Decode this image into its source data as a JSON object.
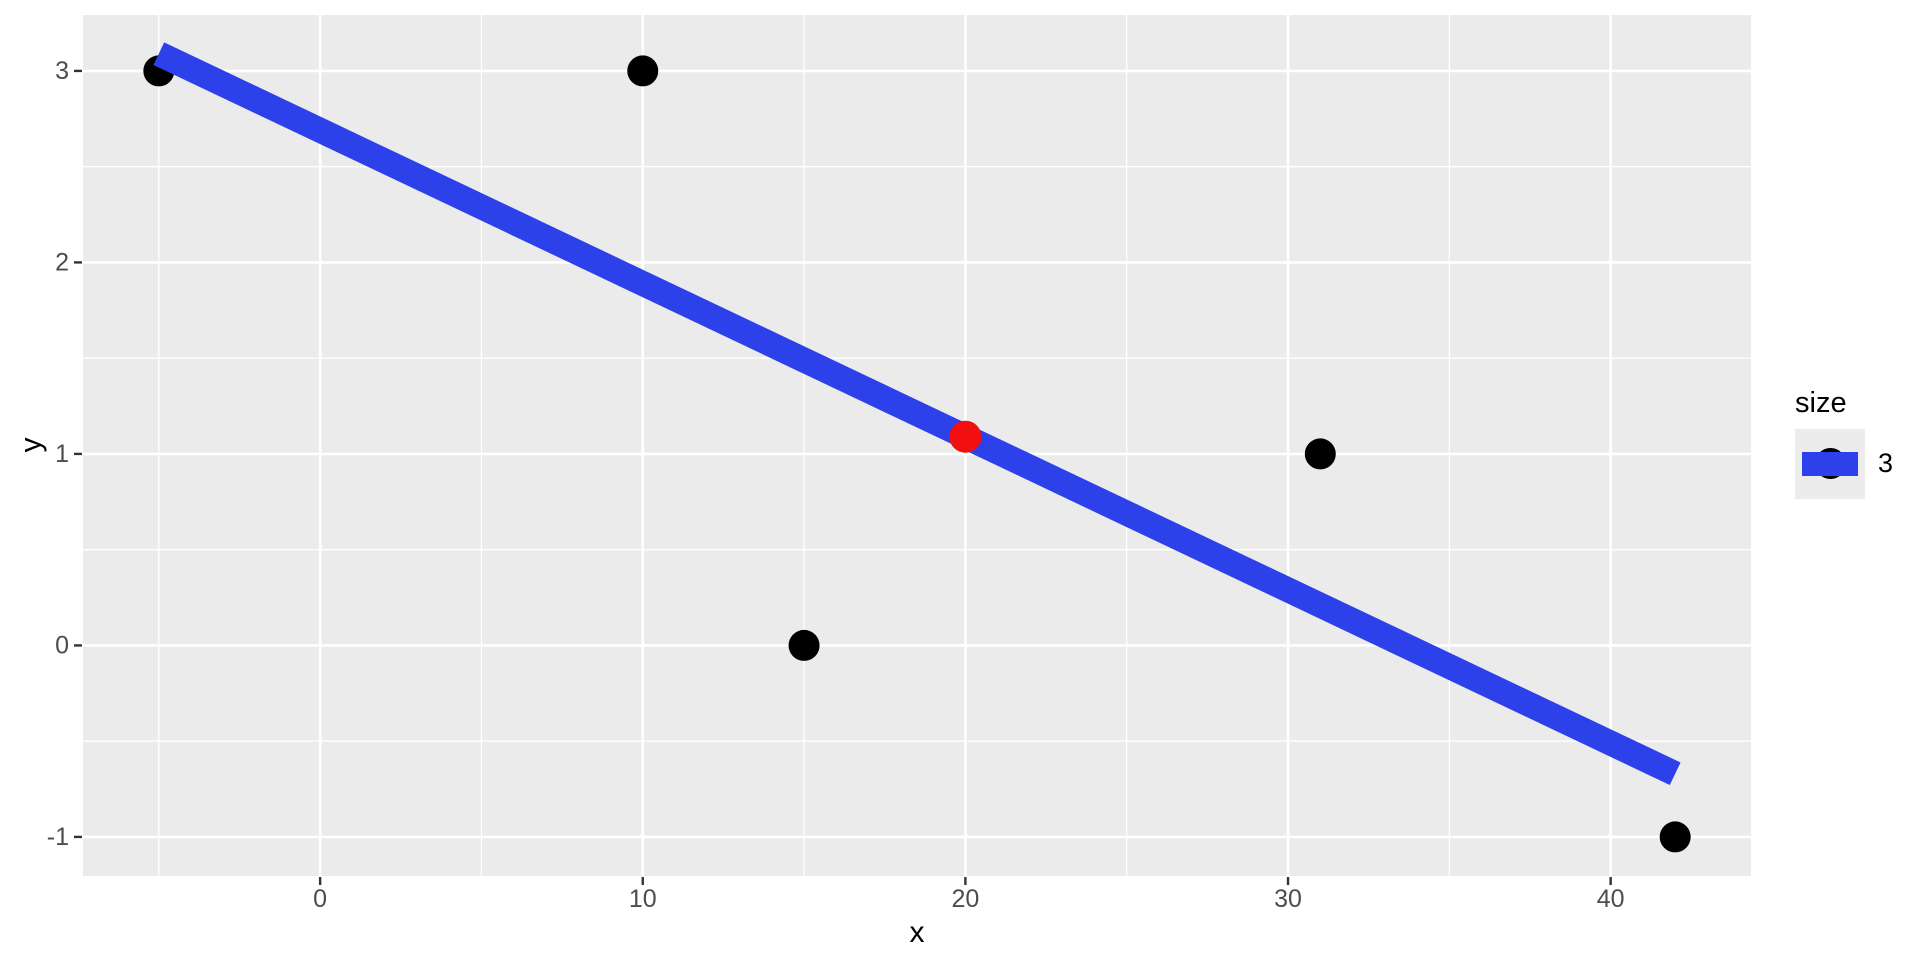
{
  "chart_data": {
    "type": "scatter",
    "title": "",
    "xlabel": "x",
    "ylabel": "y",
    "xlim": [
      -7.35,
      44.35
    ],
    "ylim": [
      -1.204,
      3.292
    ],
    "x_ticks": [
      0,
      10,
      20,
      30,
      40
    ],
    "y_ticks": [
      -1,
      0,
      1,
      2,
      3
    ],
    "x_minor_ticks": [
      -5,
      5,
      15,
      25,
      35
    ],
    "y_minor_ticks": [
      -0.5,
      0.5,
      1.5,
      2.5
    ],
    "grid": true,
    "panel_background": "#EBEBEB",
    "grid_color": "#FFFFFF",
    "tick_label_color": "#4D4D4D",
    "axis_title_color": "#000000",
    "series": [
      {
        "name": "observed-points",
        "type": "scatter",
        "color": "#000000",
        "size": 3,
        "radius_px": 15.5,
        "points": [
          {
            "x": -5,
            "y": 3
          },
          {
            "x": 10,
            "y": 3
          },
          {
            "x": 15,
            "y": 0
          },
          {
            "x": 31,
            "y": 1
          },
          {
            "x": 42,
            "y": -1
          }
        ]
      },
      {
        "name": "regression-line",
        "type": "line",
        "color": "#2D41EB",
        "size": 3,
        "stroke_px": 25,
        "points": [
          {
            "x": -5,
            "y": 3.09
          },
          {
            "x": 42,
            "y": -0.67
          }
        ]
      },
      {
        "name": "predicted-point",
        "type": "scatter",
        "color": "#F10F0F",
        "size": 3,
        "radius_px": 16,
        "points": [
          {
            "x": 20,
            "y": 1.09
          }
        ]
      }
    ],
    "legend": {
      "title": "size",
      "position": "right",
      "entries": [
        {
          "label": "3",
          "swatch": [
            "point",
            "line"
          ]
        }
      ]
    }
  }
}
